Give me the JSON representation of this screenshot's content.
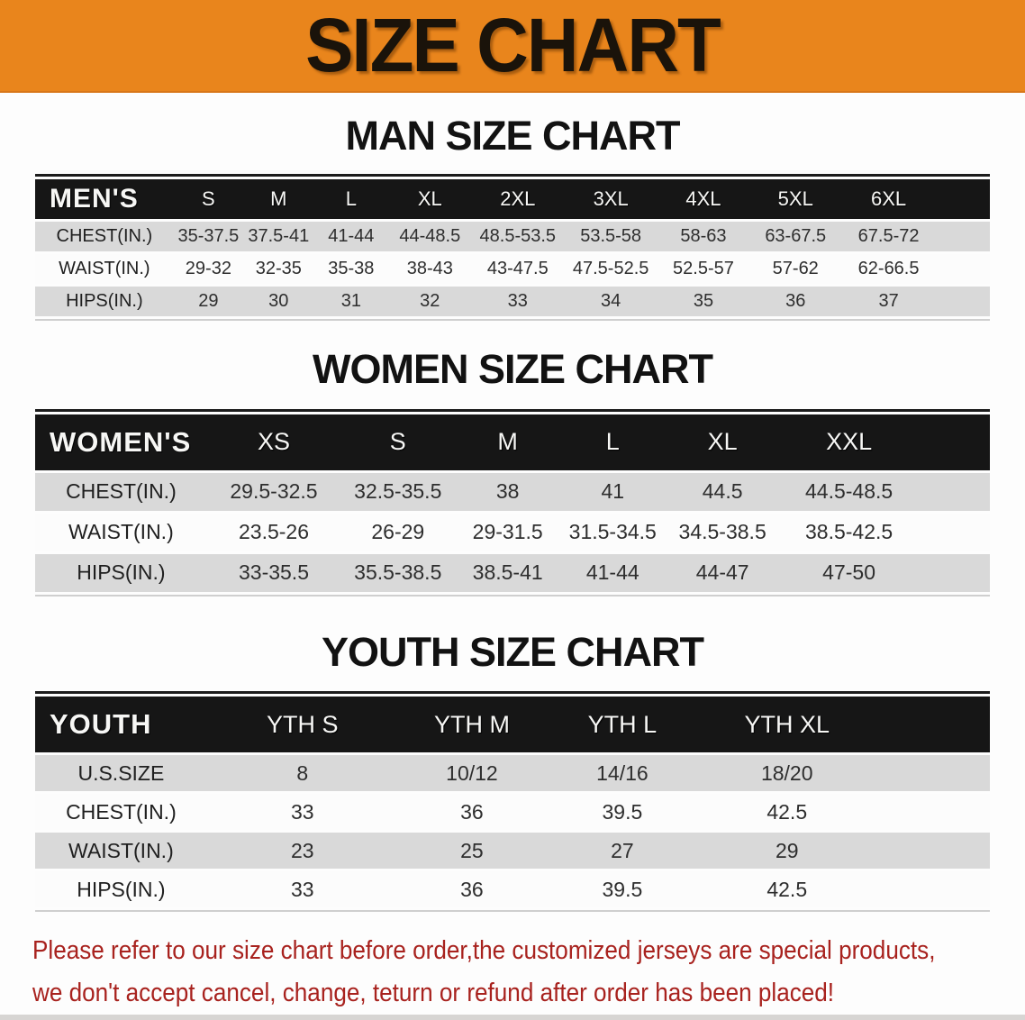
{
  "banner": {
    "title": "SIZE CHART",
    "bg_color": "#e9851c",
    "text_color": "#1a130a"
  },
  "colors": {
    "table_header_bar": "#161616",
    "table_header_text": "#f7f7f5",
    "row_gray": "#d9d9d9",
    "row_white": "#fcfcfc",
    "note_red": "#a8221e"
  },
  "sections": [
    {
      "id": "mens",
      "heading": "MAN SIZE CHART",
      "table": {
        "corner_label": "MEN'S",
        "columns": [
          "S",
          "M",
          "L",
          "XL",
          "2XL",
          "3XL",
          "4XL",
          "5XL",
          "6XL"
        ],
        "rows": [
          {
            "label": "CHEST(IN.)",
            "values": [
              "35-37.5",
              "37.5-41",
              "41-44",
              "44-48.5",
              "48.5-53.5",
              "53.5-58",
              "58-63",
              "63-67.5",
              "67.5-72"
            ]
          },
          {
            "label": "WAIST(IN.)",
            "values": [
              "29-32",
              "32-35",
              "35-38",
              "38-43",
              "43-47.5",
              "47.5-52.5",
              "52.5-57",
              "57-62",
              "62-66.5"
            ]
          },
          {
            "label": "HIPS(IN.)",
            "values": [
              "29",
              "30",
              "31",
              "32",
              "33",
              "34",
              "35",
              "36",
              "37"
            ]
          }
        ]
      }
    },
    {
      "id": "womens",
      "heading": "WOMEN SIZE CHART",
      "table": {
        "corner_label": "WOMEN'S",
        "columns": [
          "XS",
          "S",
          "M",
          "L",
          "XL",
          "XXL"
        ],
        "rows": [
          {
            "label": "CHEST(IN.)",
            "values": [
              "29.5-32.5",
              "32.5-35.5",
              "38",
              "41",
              "44.5",
              "44.5-48.5"
            ]
          },
          {
            "label": "WAIST(IN.)",
            "values": [
              "23.5-26",
              "26-29",
              "29-31.5",
              "31.5-34.5",
              "34.5-38.5",
              "38.5-42.5"
            ]
          },
          {
            "label": "HIPS(IN.)",
            "values": [
              "33-35.5",
              "35.5-38.5",
              "38.5-41",
              "41-44",
              "44-47",
              "47-50"
            ]
          }
        ]
      }
    },
    {
      "id": "youth",
      "heading": "YOUTH SIZE CHART",
      "table": {
        "corner_label": "YOUTH",
        "columns": [
          "YTH S",
          "YTH M",
          "YTH L",
          "YTH XL"
        ],
        "rows": [
          {
            "label": "U.S.SIZE",
            "values": [
              "8",
              "10/12",
              "14/16",
              "18/20"
            ]
          },
          {
            "label": "CHEST(IN.)",
            "values": [
              "33",
              "36",
              "39.5",
              "42.5"
            ]
          },
          {
            "label": "WAIST(IN.)",
            "values": [
              "23",
              "25",
              "27",
              "29"
            ]
          },
          {
            "label": "HIPS(IN.)",
            "values": [
              "33",
              "36",
              "39.5",
              "42.5"
            ]
          }
        ]
      }
    }
  ],
  "footer": {
    "line1": "Please refer to our size chart before order,the customized jerseys are special products,",
    "line2": "we don't accept cancel, change, teturn or refund after order has been placed!"
  }
}
